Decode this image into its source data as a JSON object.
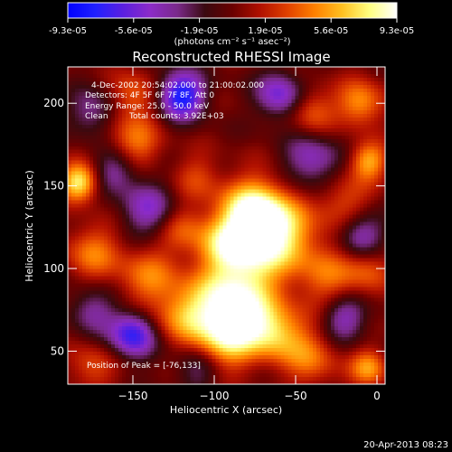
{
  "colorbar": {
    "tick_labels": [
      "-9.3e-05",
      "-5.6e-05",
      "-1.9e-05",
      "1.9e-05",
      "5.6e-05",
      "9.3e-05"
    ],
    "unit_label": "(photons cm⁻² s⁻¹ asec⁻²)",
    "stops": [
      "#0000ff",
      "#2020ff",
      "#5a1fe0",
      "#8c2bc8",
      "#7a2a8a",
      "#3a0a10",
      "#6a0000",
      "#b01000",
      "#e04000",
      "#ff8000",
      "#ffc020",
      "#ffff80",
      "#ffffff"
    ]
  },
  "chart_data": {
    "type": "heatmap",
    "title": "Reconstructed RHESSI Image",
    "xlabel": "Heliocentric X (arcsec)",
    "ylabel": "Heliocentric Y (arcsec)",
    "xlim": [
      -190,
      5
    ],
    "ylim": [
      30,
      222
    ],
    "xticks": [
      -150,
      -100,
      -50,
      0
    ],
    "yticks": [
      50,
      100,
      150,
      200
    ],
    "value_range": [
      -9.3e-05,
      9.3e-05
    ],
    "peak": [
      -76,
      133
    ],
    "sources": [
      {
        "x": -76,
        "y": 133,
        "r": 14,
        "v": 1.0
      },
      {
        "x": -60,
        "y": 120,
        "r": 16,
        "v": 0.7
      },
      {
        "x": -95,
        "y": 115,
        "r": 12,
        "v": 0.55
      },
      {
        "x": -80,
        "y": 100,
        "r": 14,
        "v": 0.55
      },
      {
        "x": -100,
        "y": 80,
        "r": 14,
        "v": 0.6
      },
      {
        "x": -80,
        "y": 70,
        "r": 14,
        "v": 0.75
      },
      {
        "x": -60,
        "y": 60,
        "r": 12,
        "v": 0.55
      },
      {
        "x": -95,
        "y": 55,
        "r": 12,
        "v": 0.6
      },
      {
        "x": -120,
        "y": 70,
        "r": 12,
        "v": 0.45
      },
      {
        "x": -140,
        "y": 95,
        "r": 14,
        "v": 0.45
      },
      {
        "x": -175,
        "y": 110,
        "r": 12,
        "v": 0.45
      },
      {
        "x": -175,
        "y": 40,
        "r": 10,
        "v": 0.35
      },
      {
        "x": -150,
        "y": 175,
        "r": 12,
        "v": 0.5
      },
      {
        "x": -183,
        "y": 152,
        "r": 8,
        "v": 0.85
      },
      {
        "x": -150,
        "y": 205,
        "r": 10,
        "v": 0.4
      },
      {
        "x": -40,
        "y": 195,
        "r": 10,
        "v": 0.4
      },
      {
        "x": -10,
        "y": 200,
        "r": 10,
        "v": 0.55
      },
      {
        "x": -5,
        "y": 165,
        "r": 8,
        "v": 0.6
      },
      {
        "x": -20,
        "y": 140,
        "r": 12,
        "v": 0.35
      },
      {
        "x": -30,
        "y": 95,
        "r": 14,
        "v": 0.4
      },
      {
        "x": -5,
        "y": 100,
        "r": 10,
        "v": 0.35
      },
      {
        "x": -40,
        "y": 45,
        "r": 12,
        "v": 0.4
      },
      {
        "x": -5,
        "y": 40,
        "r": 8,
        "v": 0.55
      },
      {
        "x": -110,
        "y": 155,
        "r": 10,
        "v": 0.3
      },
      {
        "x": -120,
        "y": 125,
        "r": 10,
        "v": 0.35
      },
      {
        "x": -150,
        "y": 60,
        "r": 10,
        "v": -0.8
      },
      {
        "x": -120,
        "y": 205,
        "r": 10,
        "v": -0.9
      },
      {
        "x": -140,
        "y": 135,
        "r": 12,
        "v": -0.5
      },
      {
        "x": -160,
        "y": 160,
        "r": 10,
        "v": -0.5
      },
      {
        "x": -40,
        "y": 165,
        "r": 12,
        "v": -0.5
      },
      {
        "x": -10,
        "y": 120,
        "r": 10,
        "v": -0.55
      },
      {
        "x": -20,
        "y": 70,
        "r": 10,
        "v": -0.5
      },
      {
        "x": -60,
        "y": 205,
        "r": 10,
        "v": -0.6
      },
      {
        "x": -175,
        "y": 75,
        "r": 10,
        "v": -0.4
      },
      {
        "x": -110,
        "y": 40,
        "r": 10,
        "v": -0.35
      },
      {
        "x": -175,
        "y": 195,
        "r": 10,
        "v": -0.4
      }
    ],
    "annotations": {
      "time": "4-Dec-2002 20:54:02.000 to 21:00:02.000",
      "detectors": "Detectors: 4F 5F 6F 7F 8F, Att 0",
      "energy": "Energy Range: 25.0 - 50.0 keV",
      "clean": "Clean",
      "counts": "Total counts: 3.92E+03",
      "peak": "Position of Peak = [-76,133]"
    }
  },
  "footer": {
    "date": "20-Apr-2013 08:23"
  }
}
